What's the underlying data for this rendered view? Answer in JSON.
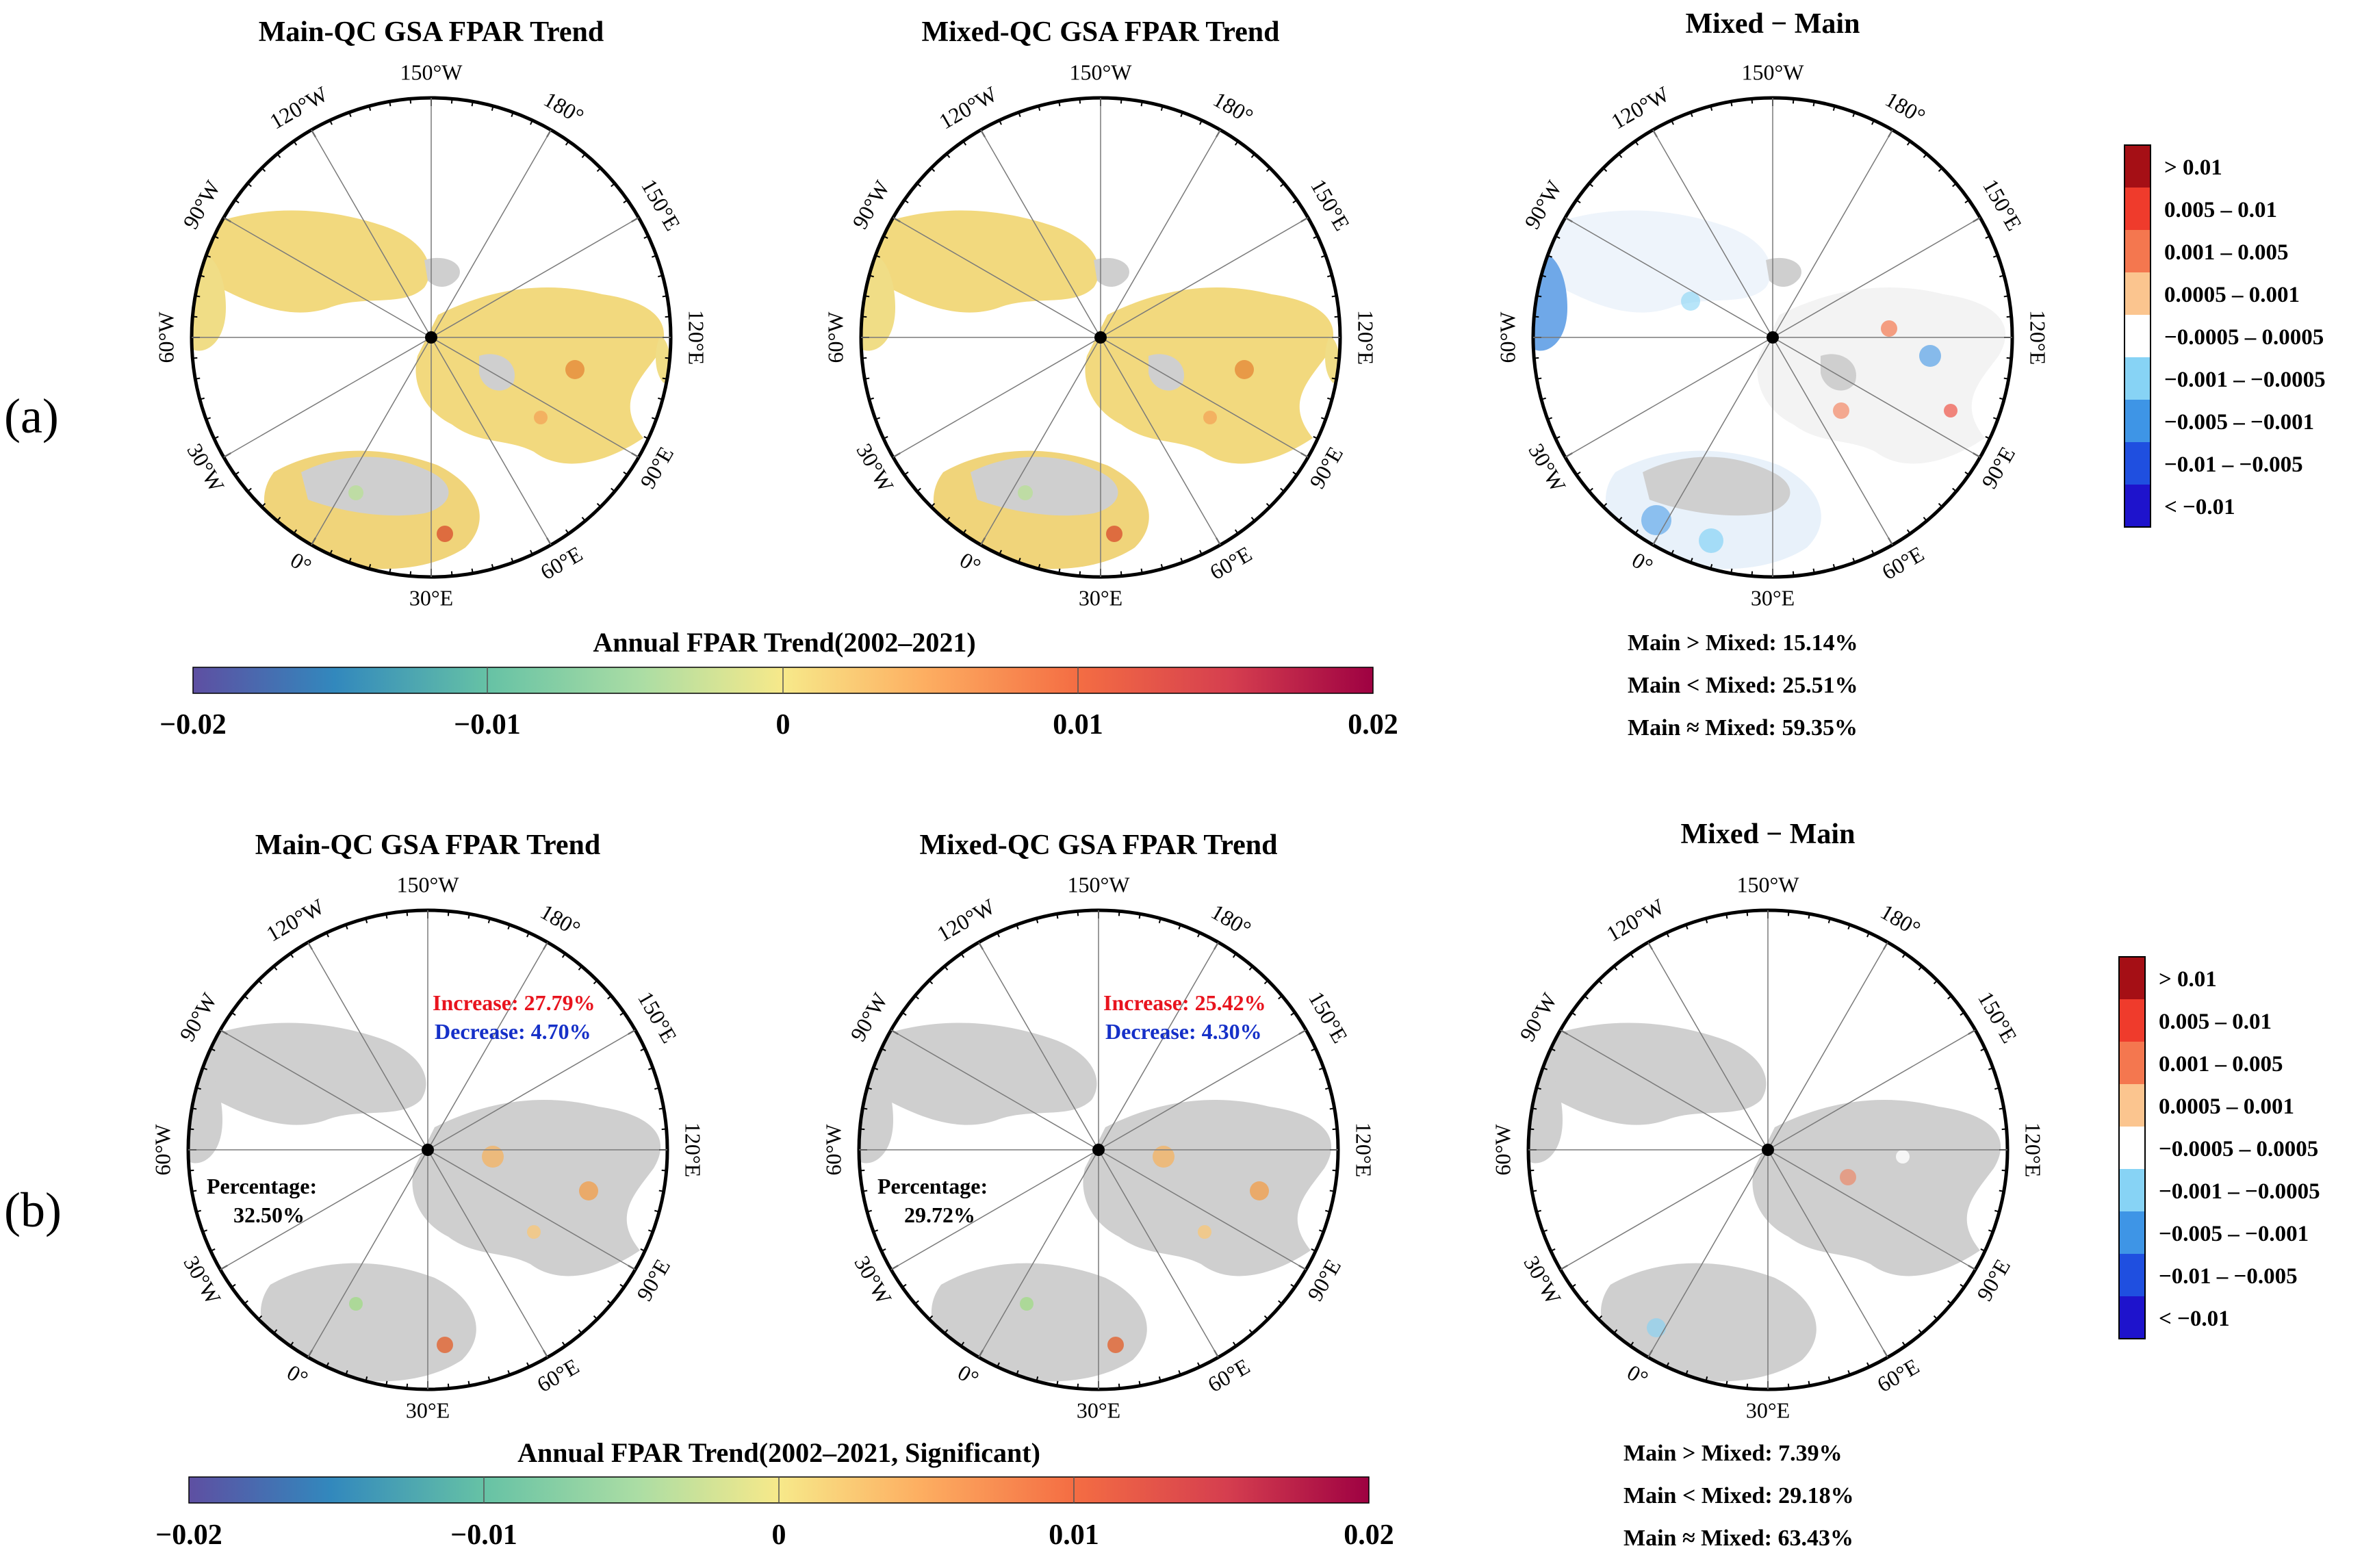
{
  "figure": {
    "panel_labels": [
      "(a)",
      "(b)"
    ],
    "map_titles": {
      "main": "Main-QC GSA FPAR Trend",
      "mixed": "Mixed-QC GSA FPAR Trend",
      "diff": "Mixed − Main"
    },
    "lon_labels": [
      "150°W",
      "180°",
      "150°E",
      "120°E",
      "90°E",
      "60°E",
      "30°E",
      "0°",
      "30°W",
      "60°W",
      "90°W",
      "120°W"
    ],
    "colors": {
      "land_nodata": "#cfcfcf",
      "trend_low": "#5e4fa2",
      "trend_mid": "#f7e98a",
      "trend_high": "#9e0142",
      "increase_text": "#e8141e",
      "decrease_text": "#1530c8"
    }
  },
  "row_a": {
    "colorbar": {
      "title": "Annual FPAR Trend(2002–2021)",
      "ticks": [
        "−0.02",
        "−0.01",
        "0",
        "0.01",
        "0.02"
      ]
    },
    "stats": [
      "Main > Mixed: 15.14%",
      "Main < Mixed: 25.51%",
      "Main ≈ Mixed: 59.35%"
    ]
  },
  "row_b": {
    "colorbar": {
      "title": "Annual FPAR Trend(2002–2021, Significant)",
      "ticks": [
        "−0.02",
        "−0.01",
        "0",
        "0.01",
        "0.02"
      ]
    },
    "main_annot": {
      "increase": "Increase: 27.79%",
      "decrease": "Decrease: 4.70%",
      "pct_label": "Percentage:",
      "pct_value": "32.50%"
    },
    "mixed_annot": {
      "increase": "Increase: 25.42%",
      "decrease": "Decrease: 4.30%",
      "pct_label": "Percentage:",
      "pct_value": "29.72%"
    },
    "stats": [
      "Main > Mixed: 7.39%",
      "Main < Mixed: 29.18%",
      "Main ≈ Mixed: 63.43%"
    ]
  },
  "diff_legend": {
    "items": [
      {
        "label": "> 0.01",
        "color": "#a50f15"
      },
      {
        "label": "0.005 – 0.01",
        "color": "#ef3b2c"
      },
      {
        "label": "0.001 – 0.005",
        "color": "#f4774f"
      },
      {
        "label": "0.0005 – 0.001",
        "color": "#fbc58f"
      },
      {
        "label": "−0.0005 – 0.0005",
        "color": "#ffffff"
      },
      {
        "label": "−0.001 – −0.0005",
        "color": "#87d3f5"
      },
      {
        "label": "−0.005 – −0.001",
        "color": "#3e95e6"
      },
      {
        "label": "−0.01 – −0.005",
        "color": "#1f4fe0"
      },
      {
        "label": "< −0.01",
        "color": "#1e13cc"
      }
    ]
  }
}
